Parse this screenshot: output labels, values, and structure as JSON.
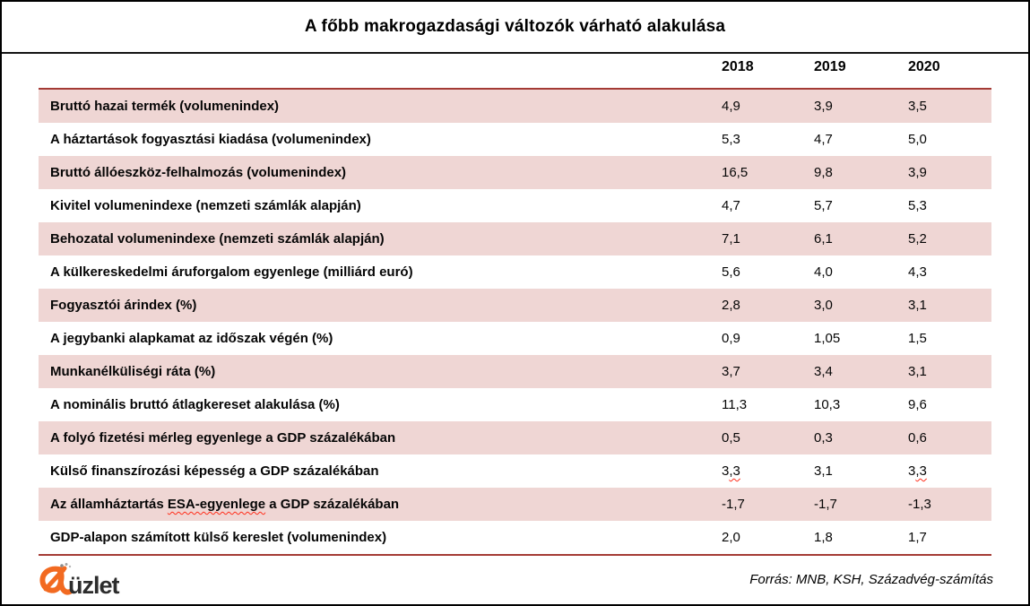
{
  "title": "A főbb makrogazdasági változók várható alakulása",
  "table": {
    "columns": [
      "2018",
      "2019",
      "2020"
    ],
    "rows": [
      {
        "label": "Bruttó hazai termék (volumenindex)",
        "values": [
          "4,9",
          "3,9",
          "3,5"
        ],
        "shaded": true
      },
      {
        "label": "A háztartások fogyasztási kiadása (volumenindex)",
        "values": [
          "5,3",
          "4,7",
          "5,0"
        ],
        "shaded": false
      },
      {
        "label": "Bruttó állóeszköz-felhalmozás (volumenindex)",
        "values": [
          "16,5",
          "9,8",
          "3,9"
        ],
        "shaded": true
      },
      {
        "label": "Kivitel volumenindexe (nemzeti számlák alapján)",
        "values": [
          "4,7",
          "5,7",
          "5,3"
        ],
        "shaded": false
      },
      {
        "label": "Behozatal volumenindexe (nemzeti számlák alapján)",
        "values": [
          "7,1",
          "6,1",
          "5,2"
        ],
        "shaded": true
      },
      {
        "label": "A külkereskedelmi áruforgalom egyenlege (milliárd euró)",
        "values": [
          "5,6",
          "4,0",
          "4,3"
        ],
        "shaded": false
      },
      {
        "label": "Fogyasztói árindex (%)",
        "values": [
          "2,8",
          "3,0",
          "3,1"
        ],
        "shaded": true
      },
      {
        "label": "A jegybanki alapkamat az időszak végén (%)",
        "values": [
          "0,9",
          "1,05",
          "1,5"
        ],
        "shaded": false
      },
      {
        "label": "Munkanélküliségi ráta (%)",
        "values": [
          "3,7",
          "3,4",
          "3,1"
        ],
        "shaded": true
      },
      {
        "label": "A nominális bruttó átlagkereset alakulása (%)",
        "values": [
          "11,3",
          "10,3",
          "9,6"
        ],
        "shaded": false
      },
      {
        "label": "A folyó fizetési mérleg egyenlege a GDP százalékában",
        "values": [
          "0,5",
          "0,3",
          "0,6"
        ],
        "shaded": true
      },
      {
        "label": "Külső finanszírozási képesség a GDP százalékában",
        "values": [
          "3,3",
          "3,1",
          "3,3"
        ],
        "shaded": false,
        "spellcheck_value_cols": [
          0,
          2
        ]
      },
      {
        "label": "Az államháztartás ESA-egyenlege a GDP százalékában",
        "values": [
          "-1,7",
          "-1,7",
          "-1,3"
        ],
        "shaded": true,
        "spellcheck_word": "ESA-egyenlege"
      },
      {
        "label": "GDP-alapon számított külső kereslet (volumenindex)",
        "values": [
          "2,0",
          "1,8",
          "1,7"
        ],
        "shaded": false
      }
    ]
  },
  "footer": {
    "logo_text": "üzlet",
    "source": "Forrás: MNB, KSH, Századvég-számítás"
  },
  "colors": {
    "row_shade": "#efd6d4",
    "accent_line": "#a43b35",
    "logo_orange": "#f26a21",
    "spellcheck_red": "#ff2d1a"
  },
  "chart_data": {
    "type": "table",
    "title": "A főbb makrogazdasági változók várható alakulása",
    "columns": [
      "2018",
      "2019",
      "2020"
    ],
    "rows": [
      {
        "label": "Bruttó hazai termék (volumenindex)",
        "values": [
          4.9,
          3.9,
          3.5
        ]
      },
      {
        "label": "A háztartások fogyasztási kiadása (volumenindex)",
        "values": [
          5.3,
          4.7,
          5.0
        ]
      },
      {
        "label": "Bruttó állóeszköz-felhalmozás (volumenindex)",
        "values": [
          16.5,
          9.8,
          3.9
        ]
      },
      {
        "label": "Kivitel volumenindexe (nemzeti számlák alapján)",
        "values": [
          4.7,
          5.7,
          5.3
        ]
      },
      {
        "label": "Behozatal volumenindexe (nemzeti számlák alapján)",
        "values": [
          7.1,
          6.1,
          5.2
        ]
      },
      {
        "label": "A külkereskedelmi áruforgalom egyenlege (milliárd euró)",
        "values": [
          5.6,
          4.0,
          4.3
        ]
      },
      {
        "label": "Fogyasztói árindex (%)",
        "values": [
          2.8,
          3.0,
          3.1
        ]
      },
      {
        "label": "A jegybanki alapkamat az időszak végén (%)",
        "values": [
          0.9,
          1.05,
          1.5
        ]
      },
      {
        "label": "Munkanélküliségi ráta (%)",
        "values": [
          3.7,
          3.4,
          3.1
        ]
      },
      {
        "label": "A nominális bruttó átlagkereset alakulása (%)",
        "values": [
          11.3,
          10.3,
          9.6
        ]
      },
      {
        "label": "A folyó fizetési mérleg egyenlege a GDP százalékában",
        "values": [
          0.5,
          0.3,
          0.6
        ]
      },
      {
        "label": "Külső finanszírozási képesség a GDP százalékában",
        "values": [
          3.3,
          3.1,
          3.3
        ]
      },
      {
        "label": "Az államháztartás ESA-egyenlege a GDP százalékában",
        "values": [
          -1.7,
          -1.7,
          -1.3
        ]
      },
      {
        "label": "GDP-alapon számított külső kereslet (volumenindex)",
        "values": [
          2.0,
          1.8,
          1.7
        ]
      }
    ],
    "source": "Forrás: MNB, KSH, Századvég-számítás"
  }
}
